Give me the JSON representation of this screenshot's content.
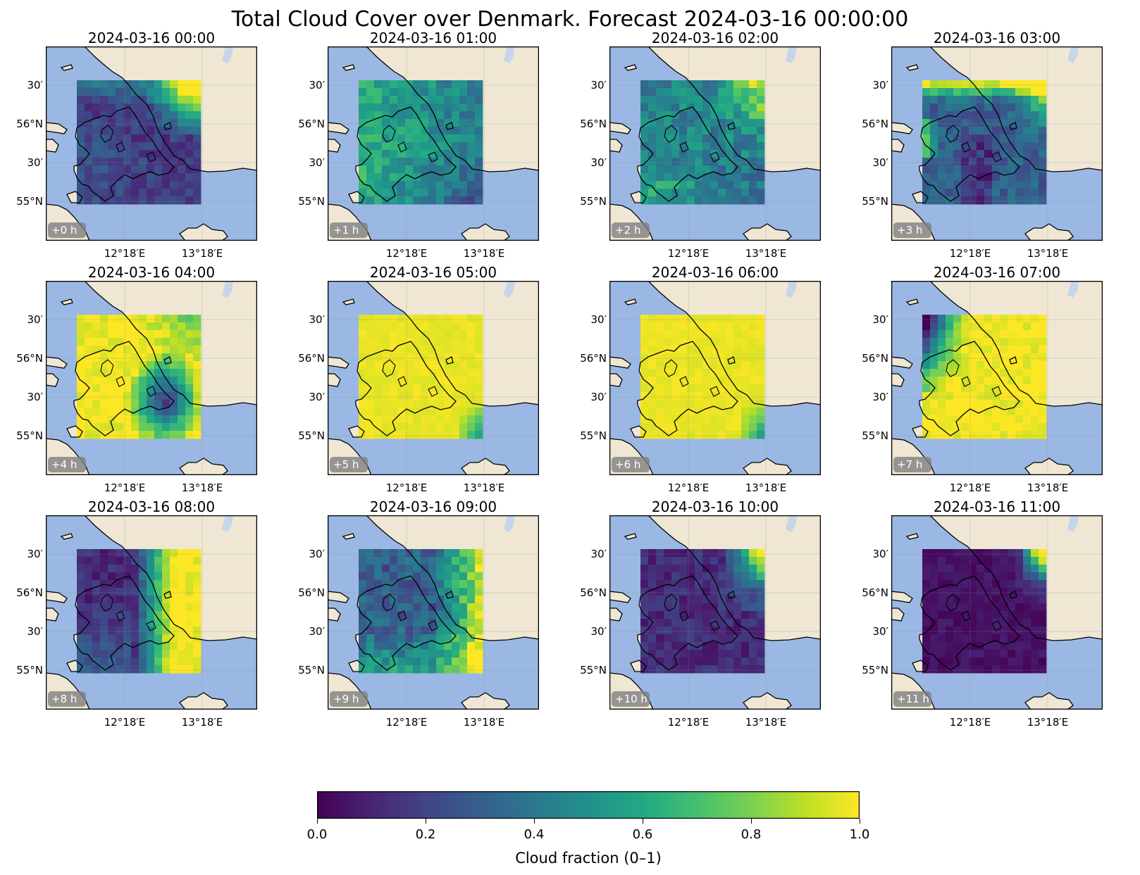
{
  "title": "Total Cloud Cover over Denmark. Forecast 2024-03-16 00:00:00",
  "lat_ticks": [
    "30′",
    "56°N",
    "30′",
    "55°N"
  ],
  "lon_ticks": [
    "12°18′E",
    "13°18′E"
  ],
  "panels": [
    {
      "title": "2024-03-16 00:00",
      "lead": "+0 h",
      "pattern": "northeast_bright"
    },
    {
      "title": "2024-03-16 01:00",
      "lead": "+1 h",
      "pattern": "mixed_mid"
    },
    {
      "title": "2024-03-16 02:00",
      "lead": "+2 h",
      "pattern": "northeast_bright_mid"
    },
    {
      "title": "2024-03-16 03:00",
      "lead": "+3 h",
      "pattern": "corners_bright"
    },
    {
      "title": "2024-03-16 04:00",
      "lead": "+4 h",
      "pattern": "mostly_bright_dark_southeast"
    },
    {
      "title": "2024-03-16 05:00",
      "lead": "+5 h",
      "pattern": "overcast"
    },
    {
      "title": "2024-03-16 06:00",
      "lead": "+6 h",
      "pattern": "overcast"
    },
    {
      "title": "2024-03-16 07:00",
      "lead": "+7 h",
      "pattern": "bright_dark_northwest"
    },
    {
      "title": "2024-03-16 08:00",
      "lead": "+8 h",
      "pattern": "dark_west_bright_east"
    },
    {
      "title": "2024-03-16 09:00",
      "lead": "+9 h",
      "pattern": "mid_bright_east"
    },
    {
      "title": "2024-03-16 10:00",
      "lead": "+10 h",
      "pattern": "mostly_dark_bright_northeast"
    },
    {
      "title": "2024-03-16 11:00",
      "lead": "+11 h",
      "pattern": "clear"
    }
  ],
  "colorbar": {
    "label": "Cloud fraction (0–1)",
    "ticks": [
      "0.0",
      "0.2",
      "0.4",
      "0.6",
      "0.8",
      "1.0"
    ],
    "range": [
      0,
      1
    ],
    "colormap": "viridis"
  },
  "colors": {
    "land": "#efe7d4",
    "sea": "#9ab8e3",
    "lake": "#c6d6ea",
    "label_box": "#7f7f7f"
  }
}
